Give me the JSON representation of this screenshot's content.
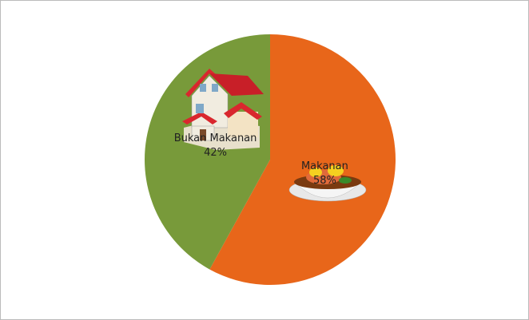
{
  "chart_data": {
    "type": "pie",
    "categories": [
      "Makanan",
      "Bukan Makanan"
    ],
    "values": [
      58,
      42
    ],
    "value_labels": [
      "58%",
      "42%"
    ],
    "colors": [
      "#e8661a",
      "#789a3a"
    ]
  }
}
